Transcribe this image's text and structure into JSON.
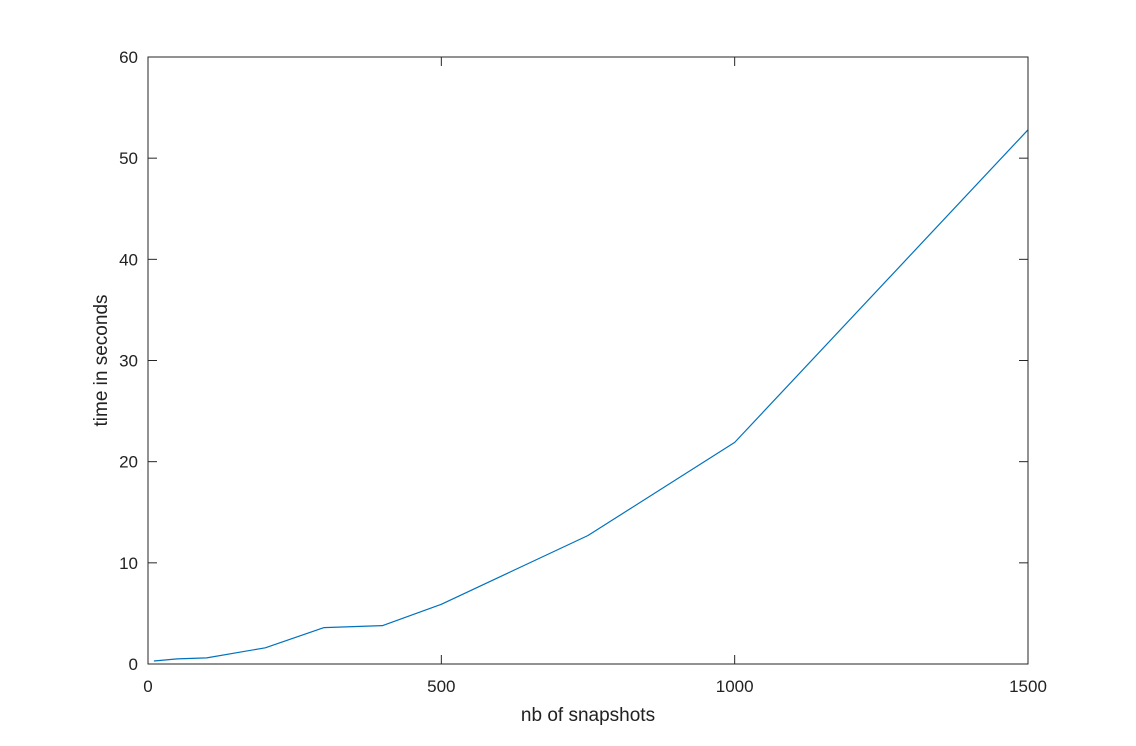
{
  "chart_data": {
    "type": "line",
    "title": "",
    "xlabel": "nb of snapshots",
    "ylabel": "time in seconds",
    "xlim": [
      0,
      1500
    ],
    "ylim": [
      0,
      60
    ],
    "xticks": [
      0,
      500,
      1000,
      1500
    ],
    "yticks": [
      0,
      10,
      20,
      30,
      40,
      50,
      60
    ],
    "grid": false,
    "line_color": "#0072BD",
    "series": [
      {
        "x": [
          10,
          50,
          100,
          200,
          300,
          400,
          500,
          750,
          1000,
          1500
        ],
        "y": [
          0.3,
          0.5,
          0.6,
          1.6,
          3.6,
          3.8,
          5.9,
          12.7,
          21.9,
          52.8
        ]
      }
    ]
  }
}
